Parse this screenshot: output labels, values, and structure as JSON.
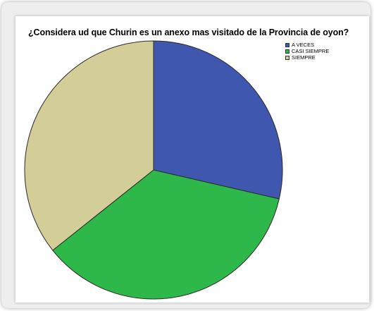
{
  "chart_data": {
    "type": "pie",
    "title": "¿Considera ud que Churin es un anexo mas visitado de la Provincia de oyon?",
    "categories": [
      "A VECES",
      "CASI SIEMPRE",
      "SIEMPRE"
    ],
    "values": [
      28.6,
      35.7,
      35.7
    ],
    "colors": [
      "#3f57ae",
      "#2fb84a",
      "#d3cd97"
    ],
    "start_angle_deg": 0,
    "direction": "clockwise",
    "legend_position": "top-right"
  }
}
